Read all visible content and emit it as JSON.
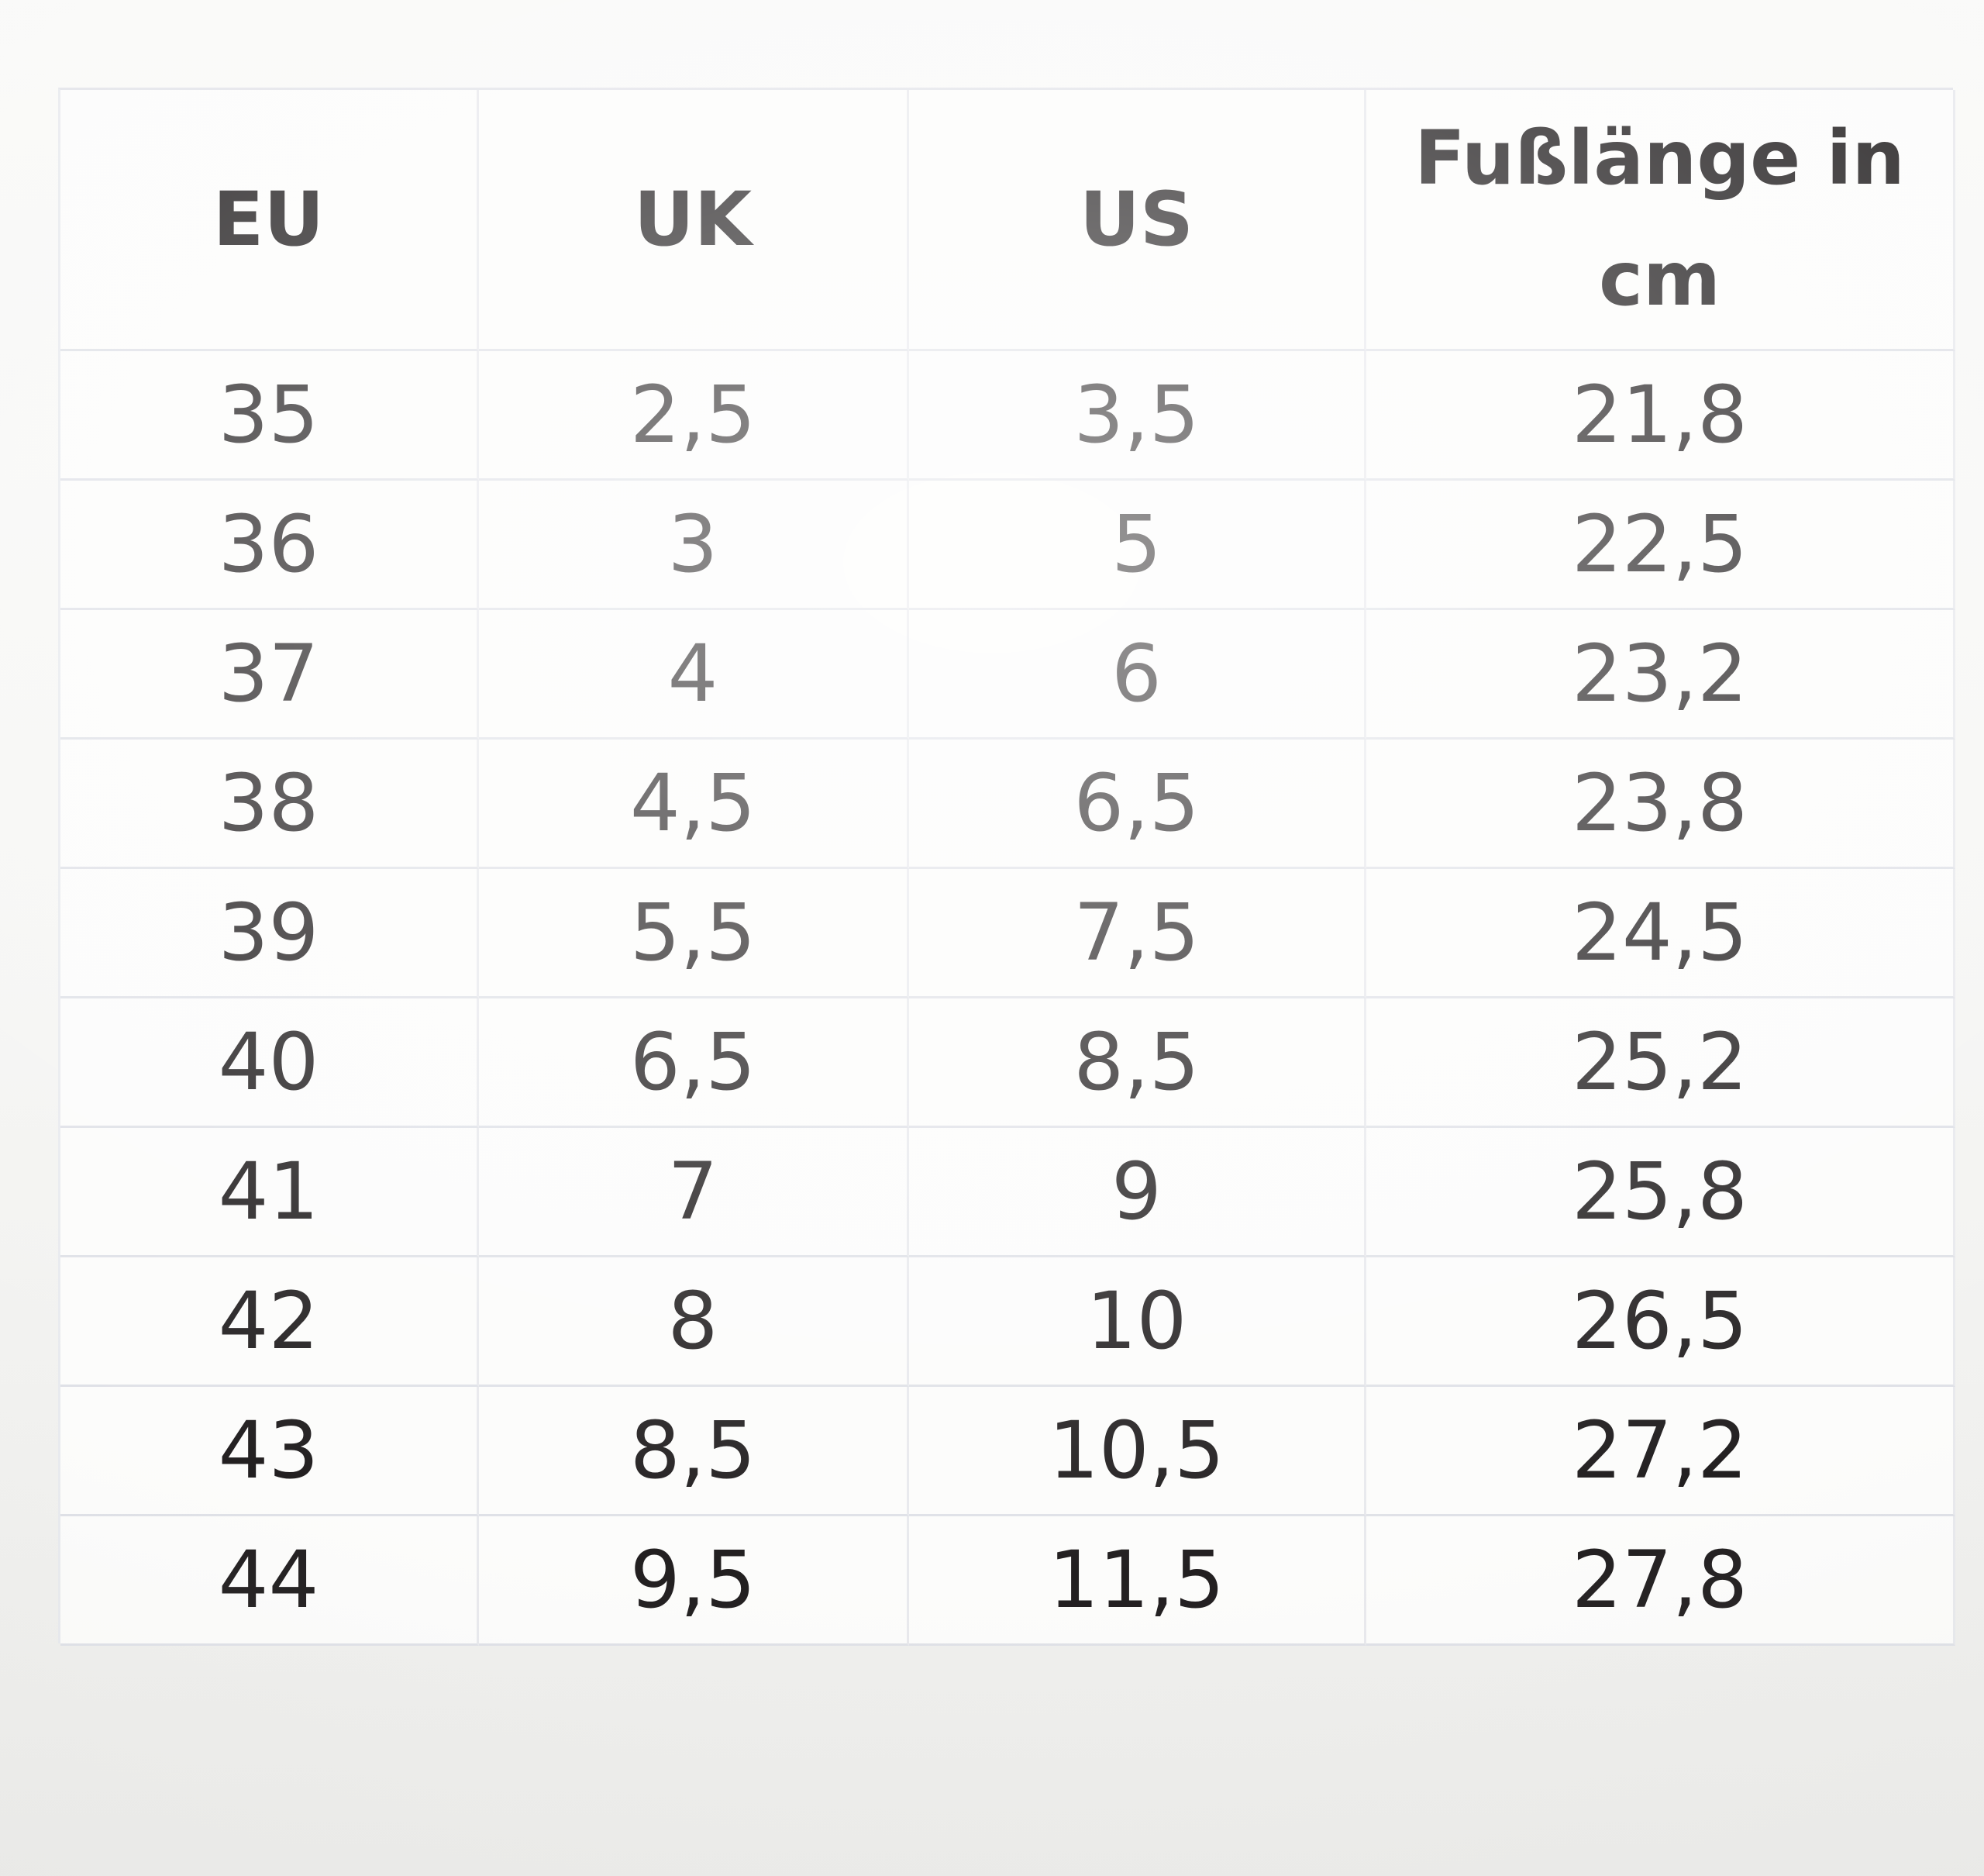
{
  "table": {
    "headers": [
      "EU",
      "UK",
      "US"
    ],
    "foot_length_header": {
      "line1": "Fußlänge in",
      "line2": "cm"
    },
    "rows": [
      [
        "35",
        "2,5",
        "3,5",
        "21,8"
      ],
      [
        "36",
        "3",
        "5",
        "22,5"
      ],
      [
        "37",
        "4",
        "6",
        "23,2"
      ],
      [
        "38",
        "4,5",
        "6,5",
        "23,8"
      ],
      [
        "39",
        "5,5",
        "7,5",
        "24,5"
      ],
      [
        "40",
        "6,5",
        "8,5",
        "25,2"
      ],
      [
        "41",
        "7",
        "9",
        "25,8"
      ],
      [
        "42",
        "8",
        "10",
        "26,5"
      ],
      [
        "43",
        "8,5",
        "10,5",
        "27,2"
      ],
      [
        "44",
        "9,5",
        "11,5",
        "27,8"
      ]
    ]
  },
  "colors": {
    "text": "#221f20",
    "grid_line": "#dfe0e8",
    "cell_background": "#fcfcfb",
    "page_background": "#f4f4f2"
  }
}
